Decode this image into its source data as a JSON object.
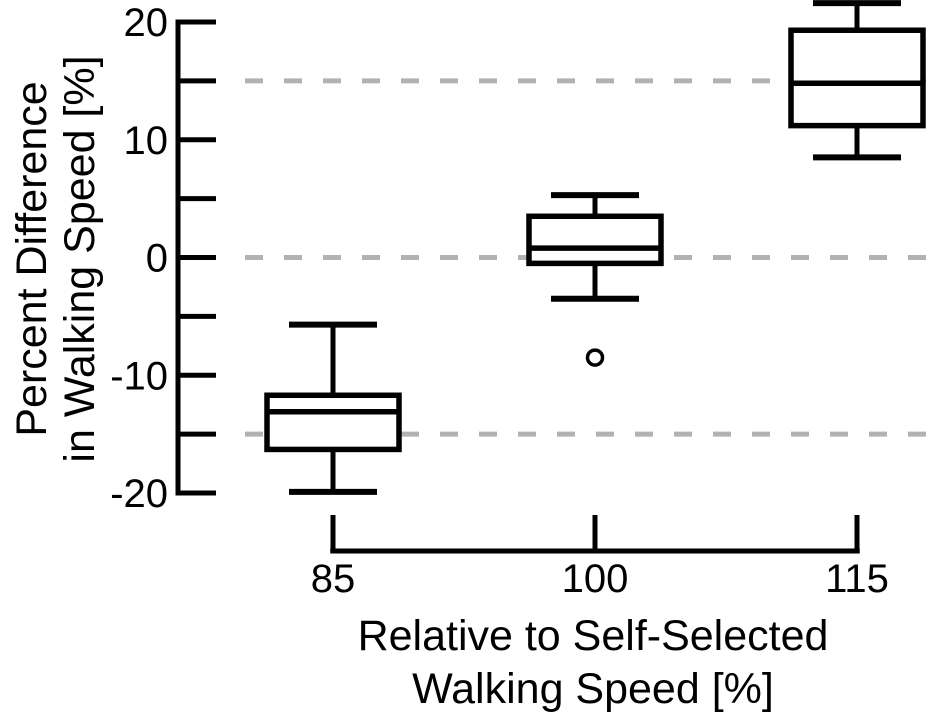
{
  "figure": {
    "background": "#ffffff"
  },
  "chart_data": {
    "type": "box",
    "title": "",
    "xlabel_lines": [
      "Relative to Self-Selected",
      "Walking Speed [%]"
    ],
    "ylabel_lines": [
      "Percent Difference",
      "in Walking Speed [%]"
    ],
    "categories": [
      "85",
      "100",
      "115"
    ],
    "ylim": [
      -20,
      20
    ],
    "yticks": [
      -20,
      -15,
      -10,
      -5,
      0,
      5,
      10,
      15,
      20
    ],
    "ytick_labeled_values": [
      -20,
      -10,
      0,
      10,
      20
    ],
    "gridline_values": [
      15,
      0,
      -15
    ],
    "grid_on": true,
    "legend": "none",
    "line_color": "#000000",
    "grid_color": "#b2b2b2",
    "background_color": "#ffffff",
    "series": [
      {
        "category": "85",
        "whisker_low": -19.9,
        "q1": -16.3,
        "median": -13.1,
        "q3": -11.7,
        "whisker_high": -5.7,
        "outliers": []
      },
      {
        "category": "100",
        "whisker_low": -3.5,
        "q1": -0.5,
        "median": 0.8,
        "q3": 3.5,
        "whisker_high": 5.3,
        "outliers": [
          -8.5
        ]
      },
      {
        "category": "115",
        "whisker_low": 8.5,
        "q1": 11.2,
        "median": 14.8,
        "q3": 19.3,
        "whisker_high": 21.6,
        "outliers": []
      }
    ]
  }
}
